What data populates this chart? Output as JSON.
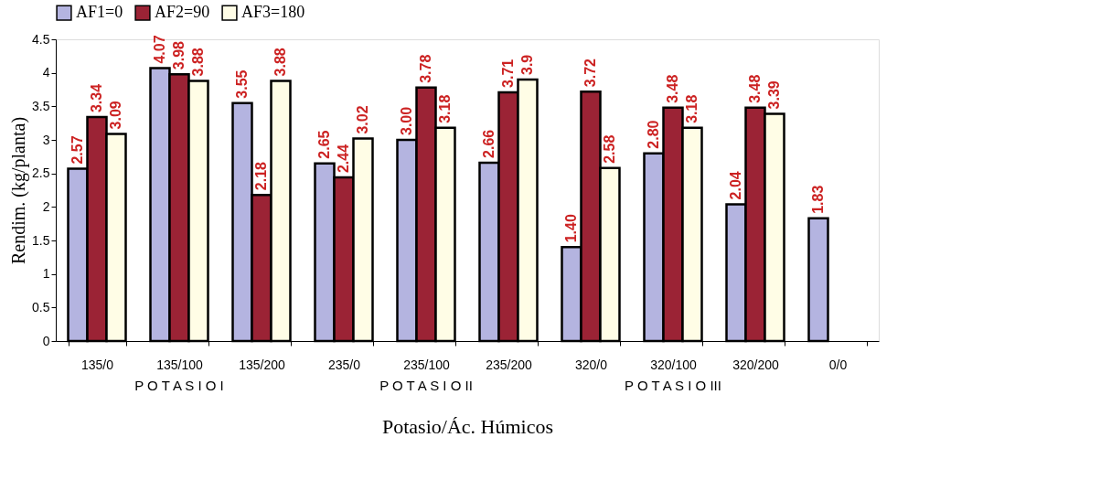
{
  "chart_data": {
    "type": "bar",
    "xlabel": "Potasio/Ác. Húmicos",
    "ylabel": "Rendim. (kg/planta)",
    "categories": [
      "135/0",
      "135/100",
      "135/200",
      "235/0",
      "235/100",
      "235/200",
      "320/0",
      "320/100",
      "320/200",
      "0/0"
    ],
    "series": [
      {
        "name": "AF1=0",
        "color": "#b4b4e0",
        "values": [
          2.57,
          4.07,
          3.55,
          2.65,
          3.0,
          2.66,
          1.4,
          2.8,
          2.04,
          1.83
        ],
        "value_labels": [
          "2.57",
          "4.07",
          "3.55",
          "2.65",
          "3.00",
          "2.66",
          "1.40",
          "2.80",
          "2.04",
          "1.83"
        ]
      },
      {
        "name": "AF2=90",
        "color": "#9b2335",
        "values": [
          3.34,
          3.98,
          2.18,
          2.44,
          3.78,
          3.71,
          3.72,
          3.48,
          3.48,
          null
        ],
        "value_labels": [
          "3.34",
          "3.98",
          "2.18",
          "2.44",
          "3.78",
          "3.71",
          "3.72",
          "3.48",
          "3.48",
          null
        ]
      },
      {
        "name": "AF3=180",
        "color": "#fffde6",
        "values": [
          3.09,
          3.88,
          3.88,
          3.02,
          3.18,
          3.9,
          2.58,
          3.18,
          3.39,
          null
        ],
        "value_labels": [
          "3.09",
          "3.88",
          "3.88",
          "3.02",
          "3.18",
          "3.9",
          "2.58",
          "3.18",
          "3.39",
          null
        ]
      }
    ],
    "ylim": [
      0,
      4.5
    ],
    "yticks": [
      0,
      0.5,
      1,
      1.5,
      2,
      2.5,
      3,
      3.5,
      4,
      4.5
    ],
    "grid": false,
    "legend": "top",
    "annotations": [
      "P O T A S I O I",
      "P O T A S I O II",
      "P O T A S I O III"
    ]
  }
}
